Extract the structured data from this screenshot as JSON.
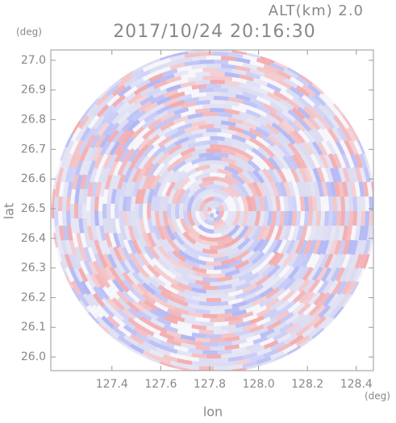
{
  "chart_data": {
    "type": "radar-ppi",
    "title": "2017/10/24 20:16:30",
    "subtitle": "ALT(km) 2.0",
    "x_unit": "(deg)",
    "y_unit": "(deg)",
    "xlabel": "lon",
    "ylabel": "lat",
    "xlim": [
      127.15,
      128.47
    ],
    "ylim": [
      25.954,
      27.035
    ],
    "xticks": [
      127.4,
      127.6,
      127.8,
      {
        "value": 128.0,
        "label": "128.0"
      },
      128.2,
      128.4
    ],
    "yticks": [
      {
        "value": 26.0,
        "label": "26.0"
      },
      26.1,
      26.2,
      26.3,
      26.4,
      26.5,
      26.6,
      26.7,
      26.8,
      26.9,
      {
        "value": 27.0,
        "label": "27.0"
      }
    ]
  }
}
